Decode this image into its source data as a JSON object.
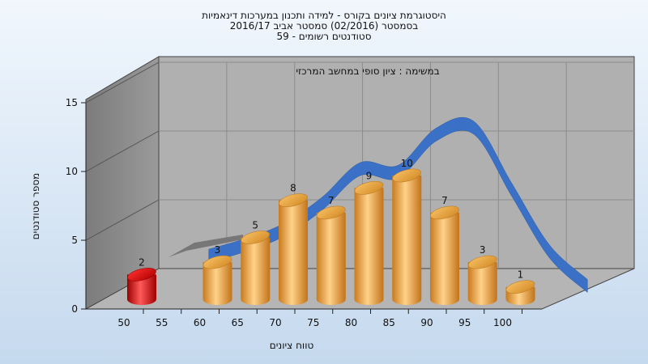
{
  "title_lines": [
    "היסטוגרמת ציונים בקורס - למידה ותכנון במערכות דינאמיות",
    "בסמסטר  (02/2016)  סמסטר אביב 2016/17",
    "סטודנטים רשומים - 59"
  ],
  "colors": {
    "background_top": "#f1f7fd",
    "background_bottom": "#c5d9ee",
    "back_wall": "#b0b0b0",
    "side_wall": "#8a8a8a",
    "floor": "#b5b5b5",
    "bar": "#f0a848",
    "highlight_bar": "#e01818",
    "curve": "#3a70c6",
    "ribbon_left": "#777777"
  },
  "chart_data": {
    "type": "bar",
    "title": "במשימה : ציון סופי במחשב המרכזי",
    "xlabel": "טווח ציונים",
    "ylabel": "מספר סטודנטים",
    "ylim": [
      0,
      15
    ],
    "yticks": [
      0,
      5,
      10,
      15
    ],
    "categories": [
      "50",
      "55",
      "60",
      "65",
      "70",
      "75",
      "80",
      "85",
      "90",
      "95",
      "100"
    ],
    "values": [
      2,
      0,
      3,
      5,
      8,
      7,
      9,
      10,
      7,
      3,
      1
    ],
    "highlight_category": "50",
    "curve": {
      "description_type": "distribution curve",
      "x": [
        "55",
        "60",
        "65",
        "70",
        "75",
        "80",
        "85",
        "90",
        "95",
        "100",
        "105"
      ],
      "y": [
        2.7,
        3.5,
        4.6,
        6.5,
        9,
        8.8,
        11.5,
        12,
        7.5,
        3,
        0.5
      ]
    },
    "grid": true,
    "legend": "none"
  }
}
